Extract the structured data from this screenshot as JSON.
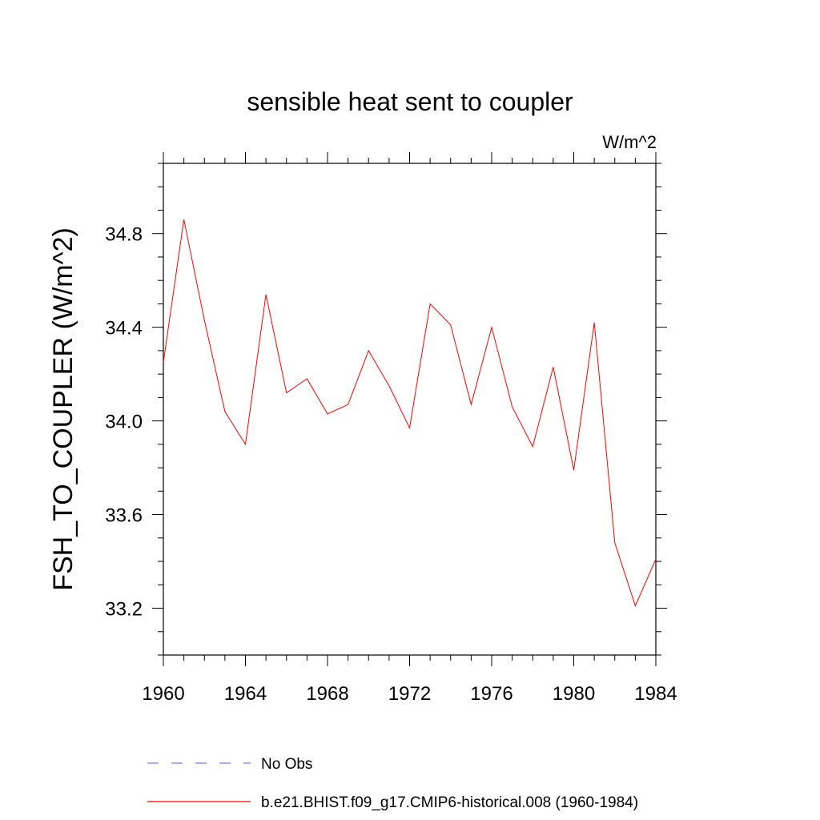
{
  "chart_data": {
    "type": "line",
    "title": "sensible heat sent to coupler",
    "units": "W/m^2",
    "xlabel": "",
    "ylabel": "FSH_TO_COUPLER  (W/m^2)",
    "xlim": [
      1960,
      1984
    ],
    "ylim": [
      33.0,
      35.1
    ],
    "x_ticks": [
      1960,
      1964,
      1968,
      1972,
      1976,
      1980,
      1984
    ],
    "x_tick_labels": [
      "1960",
      "1964",
      "1968",
      "1972",
      "1976",
      "1980",
      "1984"
    ],
    "y_ticks": [
      33.2,
      33.6,
      34.0,
      34.4,
      34.8
    ],
    "y_tick_labels": [
      "33.2",
      "33.6",
      "34.0",
      "34.4",
      "34.8"
    ],
    "grid": false,
    "legend_position": "bottom",
    "series": [
      {
        "name": "No Obs",
        "style": "dashed",
        "color": "#7b7bd0",
        "values": []
      },
      {
        "name": "b.e21.BHIST.f09_g17.CMIP6-historical.008 (1960-1984)",
        "style": "solid",
        "color": "#ff0000",
        "x": [
          1960,
          1961,
          1962,
          1963,
          1964,
          1965,
          1966,
          1967,
          1968,
          1969,
          1970,
          1971,
          1972,
          1973,
          1974,
          1975,
          1976,
          1977,
          1978,
          1979,
          1980,
          1981,
          1982,
          1983,
          1984
        ],
        "values": [
          34.25,
          34.86,
          34.43,
          34.04,
          33.9,
          34.54,
          34.12,
          34.18,
          34.03,
          34.07,
          34.3,
          34.15,
          33.97,
          34.5,
          34.41,
          34.07,
          34.4,
          34.06,
          33.89,
          34.23,
          33.79,
          34.42,
          33.48,
          33.21,
          33.41
        ]
      }
    ]
  }
}
